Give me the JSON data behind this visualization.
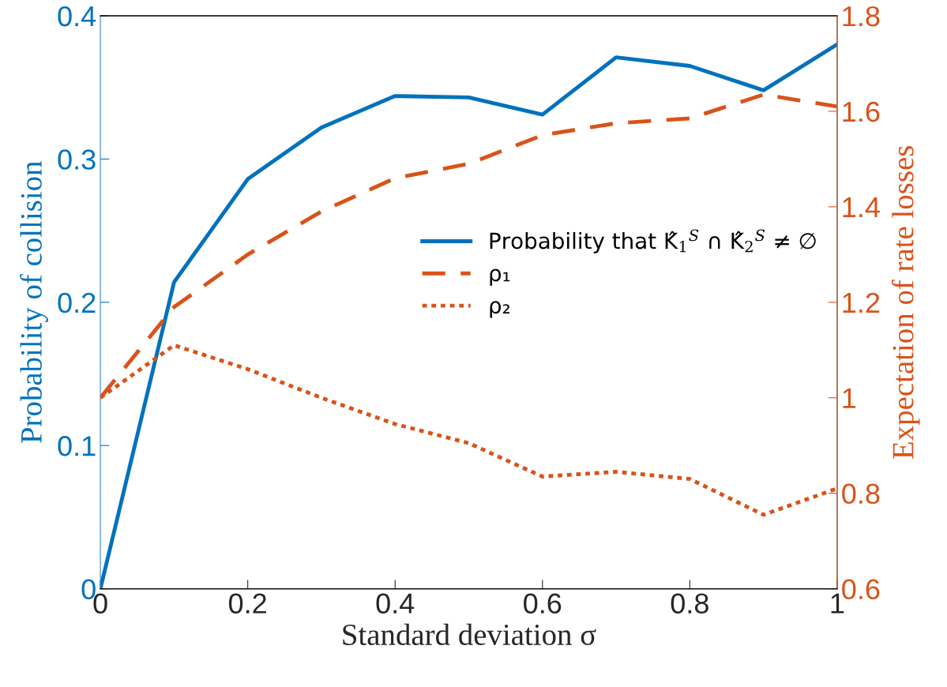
{
  "chart_data": {
    "type": "line",
    "xlabel": "Standard deviation σ",
    "ylabel": "Probability of collision",
    "y2label": "Expectation of rate losses",
    "x": [
      0,
      0.1,
      0.2,
      0.3,
      0.4,
      0.5,
      0.6,
      0.7,
      0.8,
      0.9,
      1
    ],
    "series": [
      {
        "name": "Probability that K̂$_{1}$$^{S}$ ∩ K̂$_{2}$$^{S}$ ≠ ∅",
        "color": "#0072bd",
        "line_style": "solid",
        "values": [
          0,
          0.214,
          0.286,
          0.322,
          0.344,
          0.343,
          0.331,
          0.371,
          0.365,
          0.348,
          0.38
        ]
      },
      {
        "name": "ρ₁",
        "color": "#d95319",
        "line_style": "dashed",
        "axis": "y2",
        "values": [
          1.0,
          1.19,
          1.3,
          1.39,
          1.46,
          1.49,
          1.55,
          1.575,
          1.585,
          1.635,
          1.61
        ]
      },
      {
        "name": "ρ₂",
        "color": "#d95319",
        "line_style": "dotted",
        "axis": "y2",
        "values": [
          1.0,
          1.11,
          1.06,
          1.0,
          0.945,
          0.905,
          0.835,
          0.845,
          0.83,
          0.755,
          0.81
        ]
      }
    ],
    "xlim": [
      0,
      1
    ],
    "xticks": [
      0,
      0.2,
      0.4,
      0.6,
      0.8,
      1
    ],
    "ylim": [
      0,
      0.4
    ],
    "yticks": [
      0,
      0.1,
      0.2,
      0.3,
      0.4
    ],
    "y2lim": [
      0.6,
      1.8
    ],
    "y2ticks": [
      0.6,
      0.8,
      1,
      1.2,
      1.4,
      1.6,
      1.8
    ],
    "grid": false,
    "legend": "right",
    "marker": "none"
  }
}
